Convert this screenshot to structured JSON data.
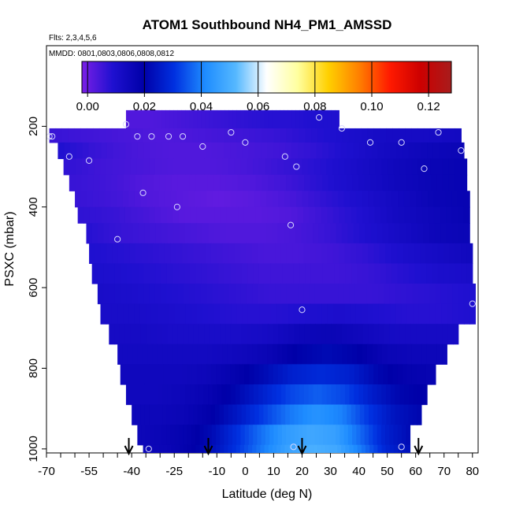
{
  "chart_data": {
    "type": "heatmap",
    "title": "ATOM1 Southbound NH4_PM1_AMSSD",
    "flights_label": "Flts: 2,3,4,5,6",
    "dates_label": "MMDD: 0801,0803,0806,0808,0812",
    "xlabel": "Latitude (deg N)",
    "ylabel": "PSXC (mbar)",
    "x_ticks": [
      "-70",
      "-55",
      "-40",
      "-25",
      "-10",
      "0",
      "10",
      "20",
      "30",
      "40",
      "50",
      "60",
      "70",
      "80"
    ],
    "x_tick_values": [
      -70,
      -55,
      -40,
      -25,
      -10,
      0,
      10,
      20,
      30,
      40,
      50,
      60,
      70,
      80
    ],
    "xlim": [
      -70,
      82
    ],
    "y_ticks": [
      "200",
      "400",
      "600",
      "800",
      "1000"
    ],
    "y_tick_values": [
      200,
      400,
      600,
      800,
      1000
    ],
    "ylim": [
      1010,
      0
    ],
    "colorbar": {
      "ticks": [
        "0.00",
        "0.02",
        "0.04",
        "0.06",
        "0.08",
        "0.10",
        "0.12"
      ],
      "tick_values": [
        0,
        0.02,
        0.04,
        0.06,
        0.08,
        0.1,
        0.12
      ],
      "range": [
        -0.002,
        0.128
      ],
      "colors": [
        "#7a1fe6",
        "#1f10d0",
        "#0000a8",
        "#0030e0",
        "#1e8cff",
        "#55b8ff",
        "#ffffff",
        "#ffffa0",
        "#ffd000",
        "#ff8000",
        "#ff1a00",
        "#cc0000",
        "#a81c1c"
      ]
    },
    "arrow_latitudes": [
      -41,
      -13,
      20,
      61
    ],
    "layers": [
      {
        "p_top": 160,
        "p_bot": 205,
        "lat_min": -42,
        "lat_max": 33,
        "values": [
          0.003,
          0.003,
          0.004,
          0.005,
          0.006,
          0.007,
          0.008,
          0.008,
          0.009,
          0.009
        ]
      },
      {
        "p_top": 205,
        "p_bot": 240,
        "lat_min": -69,
        "lat_max": 76,
        "values": [
          0.006,
          0.005,
          0.004,
          0.003,
          0.004,
          0.005,
          0.006,
          0.008,
          0.01,
          0.012,
          0.012,
          0.013
        ]
      },
      {
        "p_top": 240,
        "p_bot": 280,
        "lat_min": -66,
        "lat_max": 77,
        "values": [
          0.009,
          0.006,
          0.004,
          0.003,
          0.003,
          0.004,
          0.005,
          0.007,
          0.01,
          0.013,
          0.015,
          0.016
        ]
      },
      {
        "p_top": 280,
        "p_bot": 320,
        "lat_min": -64,
        "lat_max": 78,
        "values": [
          0.007,
          0.005,
          0.004,
          0.003,
          0.003,
          0.004,
          0.006,
          0.008,
          0.011,
          0.014,
          0.016,
          0.017
        ]
      },
      {
        "p_top": 320,
        "p_bot": 360,
        "lat_min": -62,
        "lat_max": 78,
        "values": [
          0.006,
          0.005,
          0.003,
          0.002,
          0.002,
          0.003,
          0.005,
          0.008,
          0.011,
          0.014,
          0.016,
          0.017
        ]
      },
      {
        "p_top": 360,
        "p_bot": 400,
        "lat_min": -60,
        "lat_max": 79,
        "values": [
          0.006,
          0.005,
          0.003,
          0.002,
          0.001,
          0.002,
          0.004,
          0.007,
          0.01,
          0.013,
          0.016,
          0.017
        ]
      },
      {
        "p_top": 400,
        "p_bot": 440,
        "lat_min": -59,
        "lat_max": 79,
        "values": [
          0.007,
          0.006,
          0.004,
          0.002,
          0.002,
          0.002,
          0.003,
          0.006,
          0.009,
          0.013,
          0.015,
          0.017
        ]
      },
      {
        "p_top": 440,
        "p_bot": 490,
        "lat_min": -56,
        "lat_max": 79,
        "values": [
          0.008,
          0.006,
          0.005,
          0.004,
          0.003,
          0.003,
          0.004,
          0.006,
          0.009,
          0.012,
          0.015,
          0.016
        ]
      },
      {
        "p_top": 490,
        "p_bot": 540,
        "lat_min": -55,
        "lat_max": 80,
        "values": [
          0.009,
          0.008,
          0.007,
          0.006,
          0.005,
          0.004,
          0.004,
          0.005,
          0.007,
          0.01,
          0.012,
          0.014
        ]
      },
      {
        "p_top": 540,
        "p_bot": 590,
        "lat_min": -54,
        "lat_max": 80,
        "values": [
          0.01,
          0.009,
          0.008,
          0.007,
          0.006,
          0.005,
          0.005,
          0.005,
          0.006,
          0.008,
          0.01,
          0.011
        ]
      },
      {
        "p_top": 590,
        "p_bot": 640,
        "lat_min": -52,
        "lat_max": 81,
        "values": [
          0.011,
          0.01,
          0.009,
          0.008,
          0.007,
          0.006,
          0.006,
          0.006,
          0.006,
          0.007,
          0.008,
          0.009
        ]
      },
      {
        "p_top": 640,
        "p_bot": 690,
        "lat_min": -51,
        "lat_max": 81,
        "values": [
          0.011,
          0.011,
          0.01,
          0.009,
          0.008,
          0.008,
          0.009,
          0.01,
          0.009,
          0.008,
          0.008,
          0.009
        ]
      },
      {
        "p_top": 690,
        "p_bot": 740,
        "lat_min": -48,
        "lat_max": 75,
        "values": [
          0.012,
          0.012,
          0.011,
          0.011,
          0.011,
          0.012,
          0.015,
          0.016,
          0.014,
          0.012,
          0.012,
          0.012
        ]
      },
      {
        "p_top": 740,
        "p_bot": 790,
        "lat_min": -45,
        "lat_max": 71,
        "values": [
          0.013,
          0.013,
          0.013,
          0.013,
          0.014,
          0.016,
          0.02,
          0.022,
          0.02,
          0.016,
          0.015,
          0.015
        ]
      },
      {
        "p_top": 790,
        "p_bot": 840,
        "lat_min": -44,
        "lat_max": 67,
        "values": [
          0.014,
          0.014,
          0.014,
          0.015,
          0.018,
          0.022,
          0.027,
          0.029,
          0.027,
          0.021,
          0.018,
          0.017
        ]
      },
      {
        "p_top": 840,
        "p_bot": 890,
        "lat_min": -42,
        "lat_max": 64,
        "values": [
          0.014,
          0.014,
          0.015,
          0.017,
          0.021,
          0.027,
          0.033,
          0.036,
          0.033,
          0.026,
          0.021,
          0.019
        ]
      },
      {
        "p_top": 890,
        "p_bot": 940,
        "lat_min": -40,
        "lat_max": 62,
        "values": [
          0.015,
          0.015,
          0.016,
          0.019,
          0.025,
          0.032,
          0.039,
          0.043,
          0.04,
          0.031,
          0.024,
          0.021
        ]
      },
      {
        "p_top": 940,
        "p_bot": 990,
        "lat_min": -38,
        "lat_max": 58,
        "values": [
          0.015,
          0.016,
          0.018,
          0.022,
          0.03,
          0.038,
          0.045,
          0.048,
          0.046,
          0.037,
          0.027,
          0.022
        ]
      },
      {
        "p_top": 990,
        "p_bot": 1010,
        "lat_min": -36,
        "lat_max": 58,
        "values": [
          0.015,
          0.016,
          0.019,
          0.024,
          0.032,
          0.04,
          0.047,
          0.05,
          0.048,
          0.039,
          0.028,
          0.023
        ]
      }
    ],
    "sample_points": [
      {
        "lat": -42,
        "p": 195
      },
      {
        "lat": -68,
        "p": 225
      },
      {
        "lat": -69,
        "p": 225
      },
      {
        "lat": -38,
        "p": 225
      },
      {
        "lat": -33,
        "p": 225
      },
      {
        "lat": -27,
        "p": 225
      },
      {
        "lat": -22,
        "p": 225
      },
      {
        "lat": -15,
        "p": 250
      },
      {
        "lat": -5,
        "p": 215
      },
      {
        "lat": 0,
        "p": 240
      },
      {
        "lat": 26,
        "p": 178
      },
      {
        "lat": 34,
        "p": 205
      },
      {
        "lat": 44,
        "p": 240
      },
      {
        "lat": 55,
        "p": 240
      },
      {
        "lat": 68,
        "p": 215
      },
      {
        "lat": 76,
        "p": 260
      },
      {
        "lat": -62,
        "p": 275
      },
      {
        "lat": -55,
        "p": 285
      },
      {
        "lat": 14,
        "p": 275
      },
      {
        "lat": 18,
        "p": 300
      },
      {
        "lat": 63,
        "p": 305
      },
      {
        "lat": -36,
        "p": 365
      },
      {
        "lat": -24,
        "p": 400
      },
      {
        "lat": 16,
        "p": 445
      },
      {
        "lat": -45,
        "p": 480
      },
      {
        "lat": 80,
        "p": 640
      },
      {
        "lat": 20,
        "p": 655
      },
      {
        "lat": -34,
        "p": 1000
      },
      {
        "lat": 17,
        "p": 995
      },
      {
        "lat": 55,
        "p": 995
      }
    ]
  }
}
